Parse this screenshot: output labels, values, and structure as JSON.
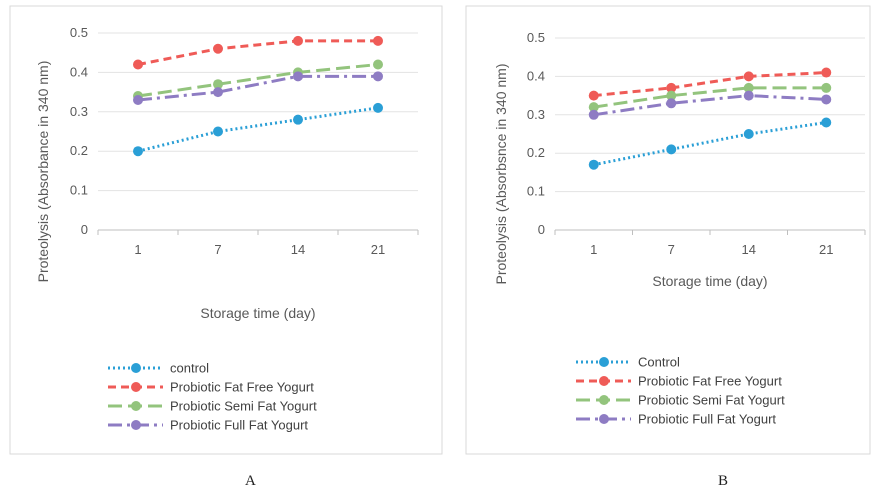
{
  "chart_data": [
    {
      "type": "line",
      "panel_label": "A",
      "categories": [
        "1",
        "7",
        "14",
        "21"
      ],
      "xlabel": "Storage time (day)",
      "ylabel": "Proteolysis (Absorbance in 340 nm)",
      "ylim": [
        0,
        0.5
      ],
      "yticks": [
        "0",
        "0.1",
        "0.2",
        "0.3",
        "0.4",
        "0.5"
      ],
      "grid": true,
      "legend_position": "bottom-left",
      "series": [
        {
          "name": "control",
          "values": [
            0.2,
            0.25,
            0.28,
            0.31
          ],
          "color": "#2a9fd6",
          "dash": "dotted"
        },
        {
          "name": "Probiotic Fat Free Yogurt",
          "values": [
            0.42,
            0.46,
            0.48,
            0.48
          ],
          "color": "#ef5b57",
          "dash": "dashed"
        },
        {
          "name": "Probiotic Semi Fat Yogurt",
          "values": [
            0.34,
            0.37,
            0.4,
            0.42
          ],
          "color": "#93c47d",
          "dash": "long-dash"
        },
        {
          "name": "Probiotic Full Fat Yogurt",
          "values": [
            0.33,
            0.35,
            0.39,
            0.39
          ],
          "color": "#8e7cc3",
          "dash": "dash-dot"
        }
      ]
    },
    {
      "type": "line",
      "panel_label": "B",
      "categories": [
        "1",
        "7",
        "14",
        "21"
      ],
      "xlabel": "Storage time (day)",
      "ylabel": "Proteolysis (Absorbsnce in 340 nm)",
      "ylim": [
        0,
        0.5
      ],
      "yticks": [
        "0",
        "0.1",
        "0.2",
        "0.3",
        "0.4",
        "0.5"
      ],
      "grid": true,
      "legend_position": "bottom-left",
      "series": [
        {
          "name": "Control",
          "values": [
            0.17,
            0.21,
            0.25,
            0.28
          ],
          "color": "#2a9fd6",
          "dash": "dotted"
        },
        {
          "name": "Probiotic Fat Free Yogurt",
          "values": [
            0.35,
            0.37,
            0.4,
            0.41
          ],
          "color": "#ef5b57",
          "dash": "dashed"
        },
        {
          "name": "Probiotic Semi Fat Yogurt",
          "values": [
            0.32,
            0.35,
            0.37,
            0.37
          ],
          "color": "#93c47d",
          "dash": "long-dash"
        },
        {
          "name": "Probiotic Full Fat Yogurt",
          "values": [
            0.3,
            0.33,
            0.35,
            0.34
          ],
          "color": "#8e7cc3",
          "dash": "dash-dot"
        }
      ]
    }
  ]
}
